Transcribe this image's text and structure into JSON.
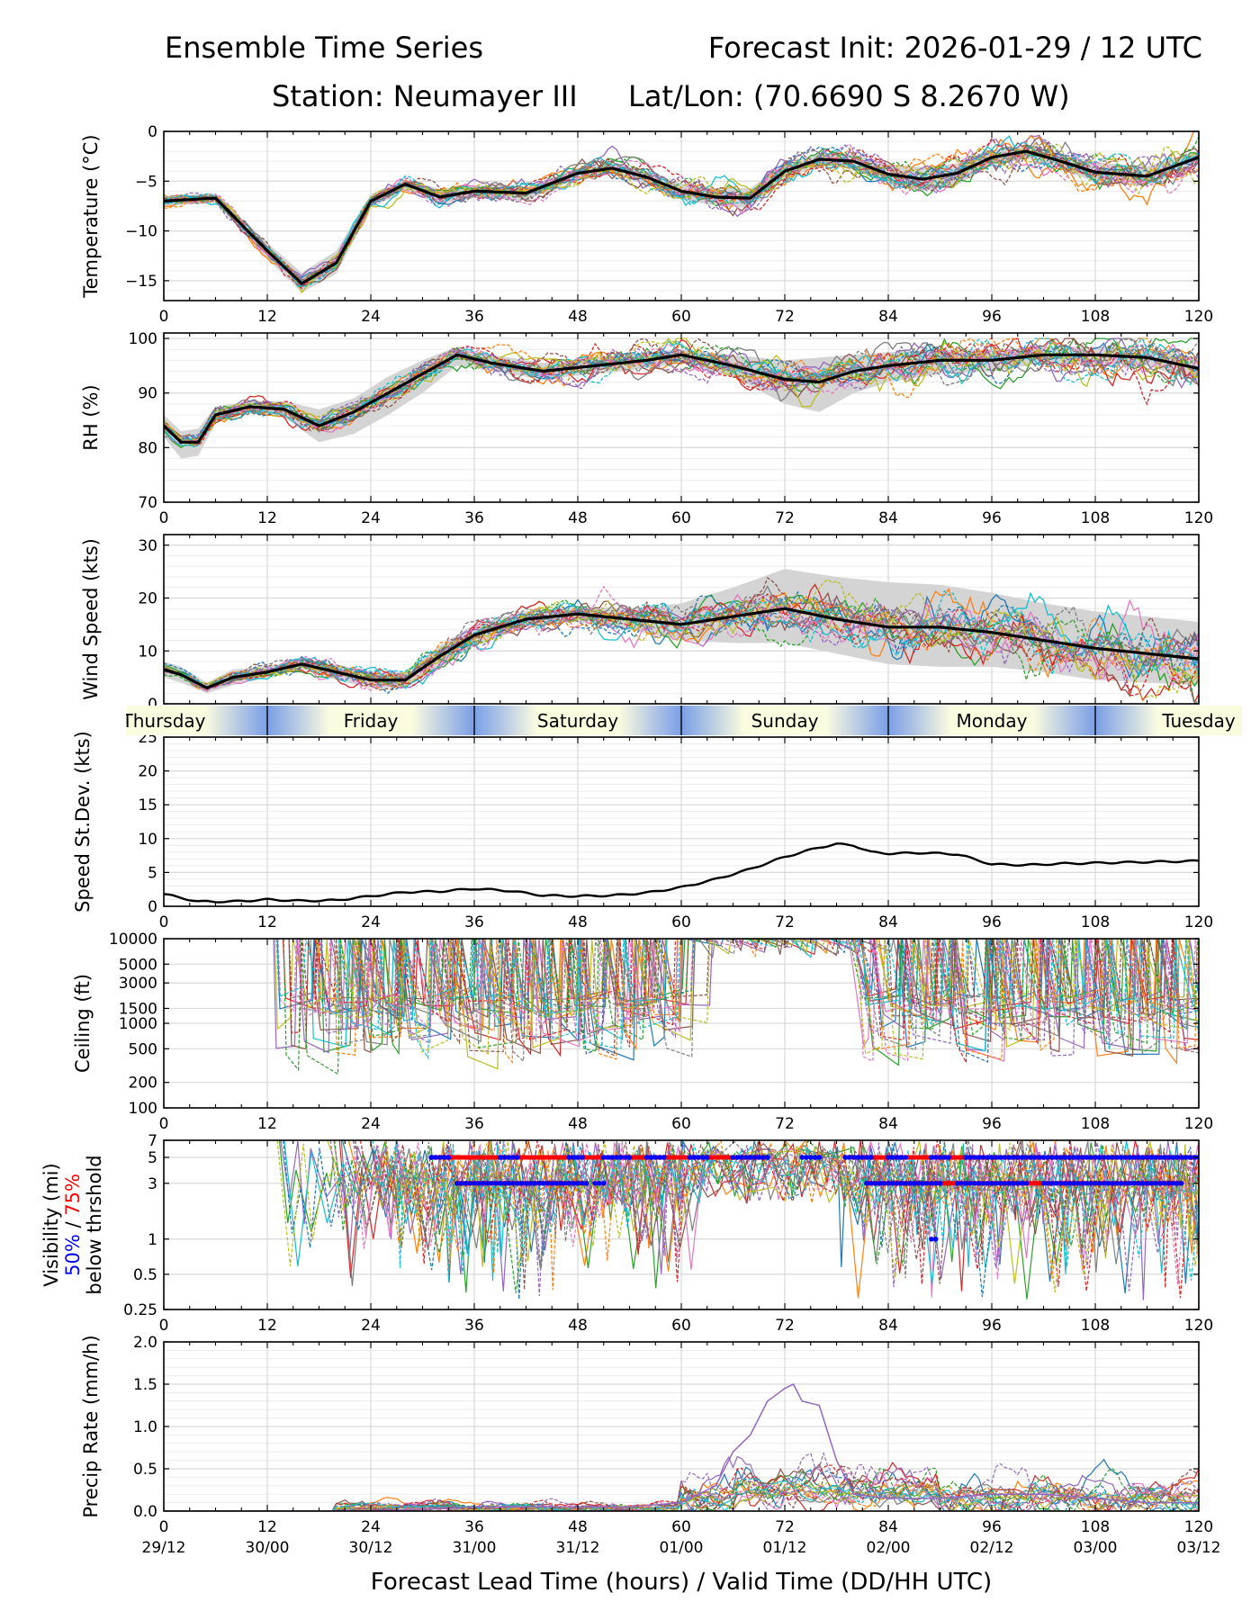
{
  "header": {
    "title": "Ensemble Time Series",
    "init": "Forecast Init: 2026-01-29 / 12 UTC",
    "station": "Station: Neumayer III",
    "latlon": "Lat/Lon: (70.6690 S 8.2670 W)"
  },
  "x_axis": {
    "lead_ticks": [
      0,
      12,
      24,
      36,
      48,
      60,
      72,
      84,
      96,
      108,
      120
    ],
    "valid_labels": [
      "29/12",
      "30/00",
      "30/12",
      "31/00",
      "31/12",
      "01/00",
      "01/12",
      "02/00",
      "02/12",
      "03/00",
      "03/12"
    ],
    "xlabel": "Forecast Lead Time (hours) / Valid Time (DD/HH UTC)"
  },
  "day_strip": {
    "days": [
      {
        "label": "Thursday",
        "start": -12,
        "end": 12
      },
      {
        "label": "Friday",
        "start": 12,
        "end": 36
      },
      {
        "label": "Saturday",
        "start": 36,
        "end": 60
      },
      {
        "label": "Sunday",
        "start": 60,
        "end": 84
      },
      {
        "label": "Monday",
        "start": 84,
        "end": 108
      },
      {
        "label": "Tuesday",
        "start": 108,
        "end": 132
      }
    ],
    "night_color": "#7a9ee6",
    "day_color": "#fbfbe0"
  },
  "ensemble_colors": [
    "#1f77b4",
    "#ff7f0e",
    "#2ca02c",
    "#d62728",
    "#9467bd",
    "#8c564b",
    "#e377c2",
    "#7f7f7f",
    "#bcbd22",
    "#17becf"
  ],
  "chart_data": [
    {
      "type": "line",
      "id": "temperature",
      "ylabel": "Temperature (°C)",
      "ylim": [
        -17,
        0
      ],
      "yticks": [
        -15,
        -10,
        -5,
        0
      ],
      "yscale": "linear",
      "x": [
        0,
        6,
        12,
        16,
        20,
        24,
        28,
        32,
        36,
        42,
        48,
        52,
        56,
        60,
        64,
        68,
        72,
        76,
        80,
        84,
        88,
        92,
        96,
        100,
        104,
        108,
        114,
        120
      ],
      "series": [
        {
          "name": "ensemble mean",
          "values": [
            -7,
            -6.7,
            -12,
            -15.3,
            -13.2,
            -7,
            -5.3,
            -6.6,
            -6.0,
            -6.2,
            -4.2,
            -3.7,
            -4.6,
            -6.0,
            -6.6,
            -6.7,
            -4.0,
            -2.8,
            -3.0,
            -4.3,
            -4.8,
            -4.2,
            -2.6,
            -2.0,
            -3.0,
            -4.1,
            -4.5,
            -2.6
          ]
        },
        {
          "name": "spread upper",
          "values": [
            -6.5,
            -6.2,
            -11.2,
            -14.2,
            -12.0,
            -6.3,
            -4.8,
            -5.8,
            -5.4,
            -5.6,
            -3.7,
            -3.2,
            -4.0,
            -5.2,
            -5.7,
            -5.7,
            -3.3,
            -2.2,
            -2.3,
            -3.3,
            -3.6,
            -3.2,
            -1.9,
            -1.4,
            -2.2,
            -3.1,
            -3.5,
            -1.9
          ]
        },
        {
          "name": "spread lower",
          "values": [
            -7.5,
            -7.2,
            -12.8,
            -16.2,
            -14.3,
            -7.7,
            -5.9,
            -7.3,
            -6.7,
            -6.9,
            -4.8,
            -4.3,
            -5.3,
            -6.8,
            -7.5,
            -7.7,
            -4.8,
            -3.4,
            -3.8,
            -5.4,
            -6.0,
            -5.4,
            -3.4,
            -2.7,
            -3.8,
            -5.1,
            -5.5,
            -3.3
          ]
        }
      ]
    },
    {
      "type": "line",
      "id": "rh",
      "ylabel": "RH (%)",
      "ylim": [
        70,
        101
      ],
      "yticks": [
        70,
        80,
        90,
        100
      ],
      "yscale": "linear",
      "x": [
        0,
        2,
        4,
        6,
        10,
        14,
        18,
        22,
        26,
        30,
        34,
        38,
        44,
        50,
        56,
        60,
        66,
        72,
        76,
        80,
        84,
        90,
        96,
        102,
        108,
        114,
        120
      ],
      "series": [
        {
          "name": "ensemble mean",
          "values": [
            84,
            81,
            81,
            86,
            87.5,
            87,
            84,
            86.5,
            90,
            93.5,
            97,
            95.5,
            94,
            95,
            96,
            97,
            95,
            92.5,
            92,
            94,
            95,
            96,
            96,
            97,
            97,
            96.5,
            94.5
          ]
        },
        {
          "name": "spread upper",
          "values": [
            86,
            83,
            83.5,
            87.5,
            88.5,
            88.5,
            87,
            89,
            93,
            96,
            98.5,
            97,
            95.5,
            96.5,
            97.5,
            98,
            97,
            96,
            96.5,
            97,
            97.5,
            98,
            98,
            98.5,
            98.5,
            98,
            96.5
          ]
        },
        {
          "name": "spread lower",
          "values": [
            82,
            78,
            78.5,
            84.5,
            86.5,
            85.5,
            81,
            82.5,
            86,
            90,
            95,
            94,
            92.5,
            93.5,
            94.5,
            95.5,
            93,
            88,
            86.5,
            90,
            92,
            93.5,
            94,
            95.5,
            95.5,
            95,
            92
          ]
        }
      ]
    },
    {
      "type": "line",
      "id": "wind",
      "ylabel": "Wind Speed (kts)",
      "ylim": [
        0,
        32
      ],
      "yticks": [
        0,
        10,
        20,
        30
      ],
      "yscale": "linear",
      "x": [
        0,
        2,
        5,
        8,
        12,
        16,
        20,
        24,
        28,
        32,
        36,
        42,
        48,
        54,
        60,
        66,
        72,
        78,
        84,
        90,
        96,
        102,
        108,
        114,
        120
      ],
      "series": [
        {
          "name": "ensemble mean",
          "values": [
            6.5,
            5.5,
            3,
            5,
            6,
            7.5,
            6,
            4.5,
            4.5,
            9,
            13,
            16,
            17,
            16,
            15,
            16.5,
            18,
            16,
            14.5,
            14.5,
            13.5,
            12,
            10.5,
            9.5,
            8.5
          ]
        },
        {
          "name": "spread upper",
          "values": [
            8,
            7,
            4,
            6.5,
            7,
            8.5,
            7.5,
            6,
            6,
            11,
            15,
            17.5,
            18.5,
            18,
            19,
            22,
            25.5,
            24,
            23,
            22.5,
            21,
            19,
            17.5,
            16.5,
            15.5
          ]
        },
        {
          "name": "spread lower",
          "values": [
            5,
            4,
            2,
            3.5,
            5,
            6.5,
            4.5,
            3,
            3,
            7,
            11,
            14.5,
            15.5,
            14,
            12,
            11.5,
            11.5,
            9.5,
            7.5,
            7,
            7,
            6,
            4.5,
            4,
            3.5
          ]
        }
      ]
    },
    {
      "type": "line",
      "id": "speed_stdev",
      "ylabel": "Speed St.Dev. (kts)",
      "ylim": [
        0,
        25
      ],
      "yticks": [
        0,
        5,
        10,
        15,
        20,
        25
      ],
      "yscale": "linear",
      "x": [
        0,
        4,
        8,
        12,
        16,
        20,
        24,
        28,
        32,
        36,
        40,
        44,
        48,
        52,
        56,
        60,
        64,
        68,
        72,
        76,
        78,
        80,
        82,
        84,
        88,
        92,
        96,
        100,
        104,
        108,
        112,
        116,
        120
      ],
      "series": [
        {
          "name": "st.dev.",
          "values": [
            1.8,
            0.7,
            0.7,
            1.0,
            0.8,
            0.9,
            1.5,
            2.1,
            2.2,
            2.6,
            2.3,
            1.6,
            1.5,
            1.6,
            2.0,
            2.8,
            4.0,
            5.5,
            7.3,
            8.7,
            9.2,
            9.0,
            8.0,
            7.8,
            7.9,
            7.7,
            6.2,
            6.1,
            6.3,
            6.4,
            6.5,
            6.6,
            6.7
          ]
        }
      ]
    },
    {
      "type": "line",
      "id": "ceiling",
      "ylabel": "Ceiling (ft)",
      "yscale": "log",
      "ylim": [
        100,
        10000
      ],
      "yticks": [
        100,
        200,
        500,
        1000,
        1500,
        3000,
        5000,
        10000
      ],
      "ytick_labels": [
        "100",
        "200",
        "500",
        "1000",
        "1500",
        "3000",
        "5000",
        "10000"
      ]
    },
    {
      "type": "line",
      "id": "visibility",
      "ylabel": "Visibility (mi)",
      "ylabel_parts": [
        "50%",
        " / ",
        "75%"
      ],
      "ylabel_line3": "below thrshold",
      "yscale": "log",
      "ylim": [
        0.25,
        7
      ],
      "yticks": [
        0.25,
        0.5,
        1,
        3,
        5,
        7
      ],
      "ytick_labels": [
        "0.25",
        "0.5",
        "1",
        "3",
        "5",
        "7"
      ],
      "threshold_segments": [
        {
          "level": 5,
          "color": "red",
          "start": 31,
          "end": 70
        },
        {
          "level": 5,
          "color": "red",
          "start": 79,
          "end": 120
        },
        {
          "level": 3,
          "color": "red",
          "start": 34,
          "end": 49
        },
        {
          "level": 3,
          "color": "red",
          "start": 81.5,
          "end": 118
        }
      ],
      "threshold_points_50": [
        {
          "level": 5,
          "ranges": [
            [
              31,
              33
            ],
            [
              39,
              41
            ],
            [
              47,
              48.5
            ],
            [
              51,
              54
            ],
            [
              56,
              58
            ],
            [
              61,
              63
            ],
            [
              66,
              70
            ],
            [
              74,
              76
            ],
            [
              79,
              82
            ],
            [
              84,
              86
            ],
            [
              89,
              91
            ],
            [
              93,
              120
            ]
          ]
        },
        {
          "level": 3,
          "ranges": [
            [
              34,
              49
            ],
            [
              50,
              51
            ],
            [
              81.5,
              90
            ],
            [
              92,
              100
            ],
            [
              102,
              118
            ]
          ]
        },
        {
          "level": 1,
          "ranges": [
            [
              89,
              89.5
            ]
          ]
        }
      ]
    },
    {
      "type": "line",
      "id": "precip",
      "ylabel": "Precip Rate (mm/h)",
      "ylim": [
        0,
        2.0
      ],
      "yticks": [
        0.0,
        0.5,
        1.0,
        1.5,
        2.0
      ],
      "ytick_labels": [
        "0.0",
        "0.5",
        "1.0",
        "1.5",
        "2.0"
      ],
      "yscale": "linear",
      "x": [
        0,
        20,
        30,
        36,
        42,
        48,
        54,
        60,
        64,
        66,
        68,
        70,
        72,
        73,
        74,
        76,
        78,
        80,
        84,
        90,
        96,
        102,
        108,
        114,
        120
      ],
      "series": [
        {
          "name": "peak member",
          "values": [
            0,
            0,
            0.02,
            0.05,
            0.05,
            0.05,
            0.05,
            0.1,
            0.3,
            0.7,
            0.9,
            1.3,
            1.45,
            1.5,
            1.3,
            1.25,
            0.6,
            0.2,
            0.15,
            0.15,
            0.2,
            0.2,
            0.15,
            0.1,
            0.1
          ]
        }
      ]
    }
  ]
}
